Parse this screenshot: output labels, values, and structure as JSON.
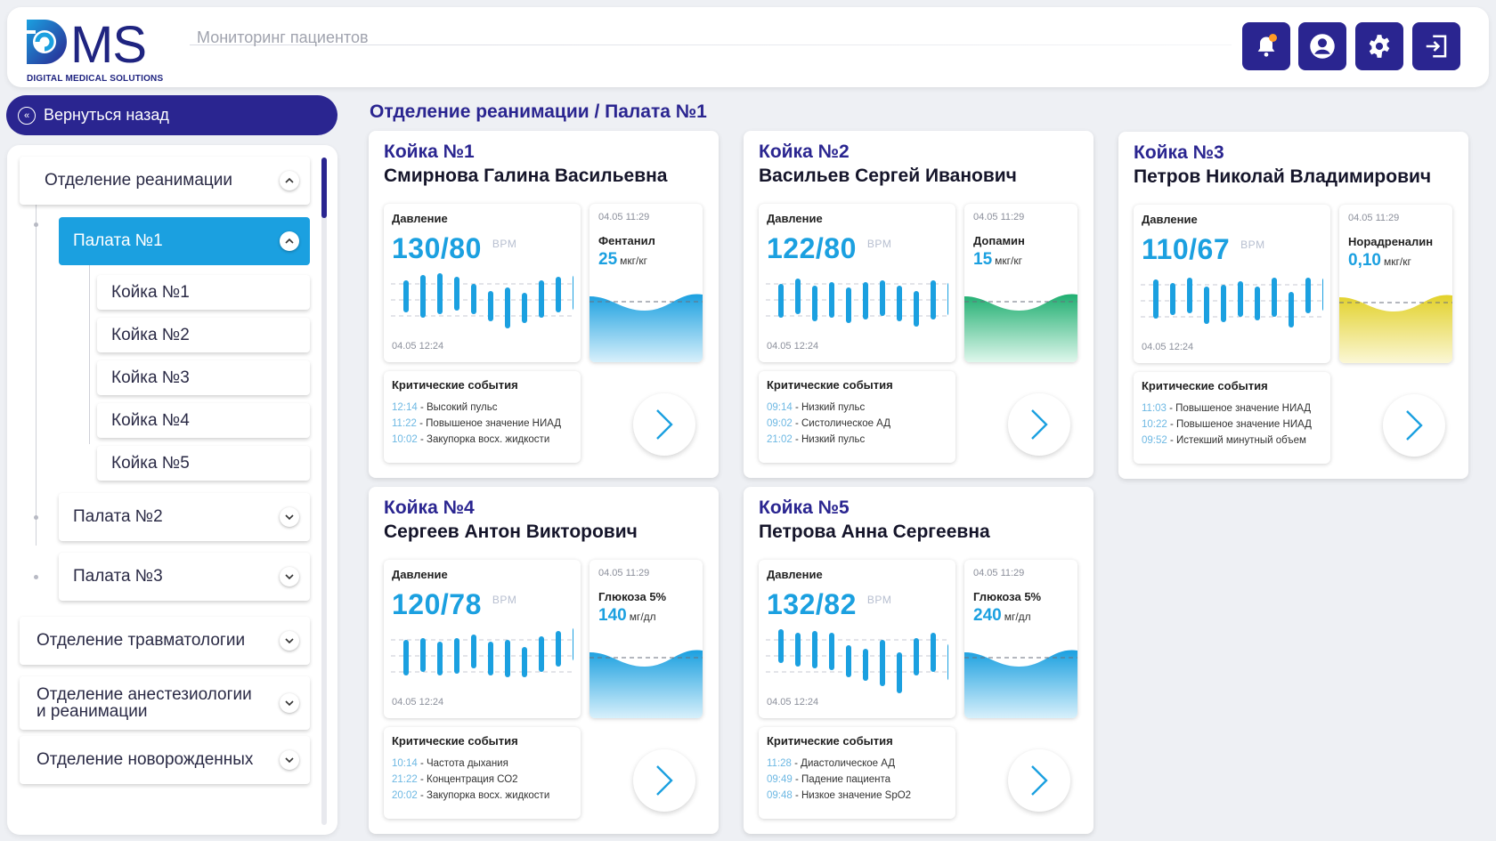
{
  "header": {
    "logo_sub": "DIGITAL MEDICAL SOLUTIONS",
    "title": "Мониторинг пациентов",
    "icons": [
      "bell-icon",
      "user-icon",
      "gear-icon",
      "logout-icon"
    ]
  },
  "back": {
    "label": "Вернуться назад"
  },
  "breadcrumb": "Отделение реанимации / Палата №1",
  "sidebar": {
    "dept1": "Отделение реанимации",
    "ward1": "Палата №1",
    "beds": [
      "Койка №1",
      "Койка №2",
      "Койка №3",
      "Койка №4",
      "Койка №5"
    ],
    "ward2": "Палата №2",
    "ward3": "Палата №3",
    "dept2": "Отделение травматологии",
    "dept3_l1": "Отделение анестезиологии",
    "dept3_l2": "и реанимации",
    "dept4": "Отделение новорожденных"
  },
  "colors": {
    "accent": "#2a2590",
    "primary": "#1ba0e0",
    "green": "#1fae70",
    "yellow": "#e2d12a"
  },
  "cards": [
    {
      "bed": "Койка №1",
      "name": "Смирнова Галина Васильевна",
      "pressure_label": "Давление",
      "pressure": "130/80",
      "unit": "BPM",
      "pressure_time": "04.05 12:24",
      "drug_time": "04.05 11:29",
      "drug": "Фентанил",
      "drug_value": "25",
      "drug_unit": "мкг/кг",
      "wave_color": "blue",
      "events_title": "Критические события",
      "events": [
        {
          "time": "12:14",
          "text": " - Высокий пульс"
        },
        {
          "time": "11:22",
          "text": " - Повышеное значение НИАД"
        },
        {
          "time": "10:02",
          "text": " - Закупорка восх. жидкости"
        }
      ]
    },
    {
      "bed": "Койка №2",
      "name": "Васильев Сергей Иванович",
      "pressure_label": "Давление",
      "pressure": "122/80",
      "unit": "BPM",
      "pressure_time": "04.05 12:24",
      "drug_time": "04.05 11:29",
      "drug": "Допамин",
      "drug_value": "15",
      "drug_unit": "мкг/кг",
      "wave_color": "green",
      "events_title": "Критические события",
      "events": [
        {
          "time": "09:14",
          "text": " - Низкий пульс"
        },
        {
          "time": "09:02",
          "text": " - Систолическое АД"
        },
        {
          "time": "21:02",
          "text": " - Низкий пульс"
        }
      ]
    },
    {
      "bed": "Койка №3",
      "name": "Петров Николай Владимирович",
      "pressure_label": "Давление",
      "pressure": "110/67",
      "unit": "BPM",
      "pressure_time": "04.05 12:24",
      "drug_time": "04.05 11:29",
      "drug": "Норадреналин",
      "drug_value": "0,10",
      "drug_unit": "мкг/кг",
      "wave_color": "yellow",
      "events_title": "Критические события",
      "events": [
        {
          "time": "11:03",
          "text": " - Повышеное значение НИАД"
        },
        {
          "time": "10:22",
          "text": " - Повышеное значение НИАД"
        },
        {
          "time": "09:52",
          "text": " - Истекший минутный объем"
        }
      ]
    },
    {
      "bed": "Койка №4",
      "name": "Сергеев Антон Викторович",
      "pressure_label": "Давление",
      "pressure": "120/78",
      "unit": "BPM",
      "pressure_time": "04.05 12:24",
      "drug_time": "04.05 11:29",
      "drug": "Глюкоза 5%",
      "drug_value": "140",
      "drug_unit": "мг/дл",
      "wave_color": "blue",
      "events_title": "Критические события",
      "events": [
        {
          "time": "10:14",
          "text": " - Частота дыхания"
        },
        {
          "time": "21:22",
          "text": " - Концентрация СО2"
        },
        {
          "time": "20:02",
          "text": " - Закупорка восх. жидкости"
        }
      ]
    },
    {
      "bed": "Койка №5",
      "name": "Петрова Анна Сергеевна",
      "pressure_label": "Давление",
      "pressure": "132/82",
      "unit": "BPM",
      "pressure_time": "04.05 12:24",
      "drug_time": "04.05 11:29",
      "drug": "Глюкоза 5%",
      "drug_value": "240",
      "drug_unit": "мг/дл",
      "wave_color": "blue",
      "events_title": "Критические события",
      "events": [
        {
          "time": "11:28",
          "text": " - Диастолическое АД"
        },
        {
          "time": "09:49",
          "text": " - Падение пациента"
        },
        {
          "time": "09:48",
          "text": " - Низкое значение SpO2"
        }
      ]
    }
  ]
}
